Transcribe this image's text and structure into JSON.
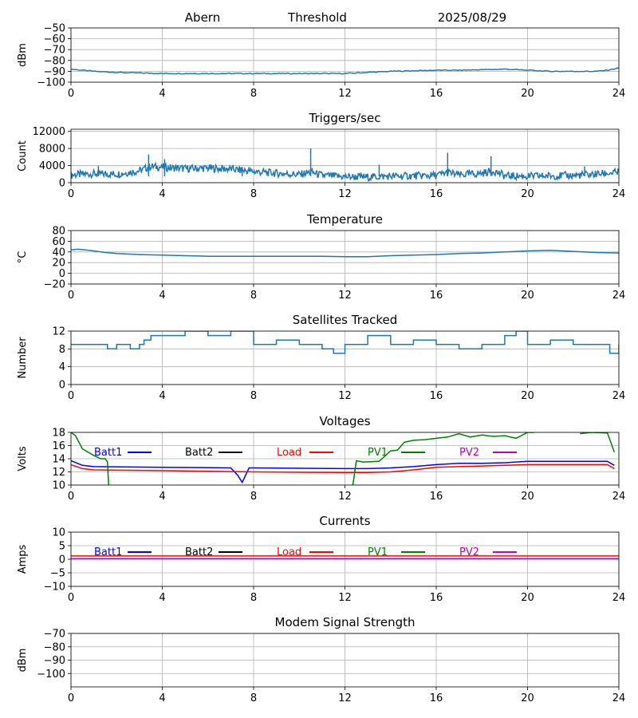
{
  "header": {
    "station": "Abern",
    "subtitle": "Threshold",
    "date": "2025/08/29"
  },
  "colors": {
    "data": "#1f77b4",
    "batt1": "#0000ff",
    "batt2": "#000000",
    "load": "#ff0000",
    "pv1": "#008000",
    "pv2": "#bf00bf"
  },
  "x_ticks": [
    "0",
    "4",
    "8",
    "12",
    "16",
    "20",
    "24"
  ],
  "chart_data": [
    {
      "type": "line",
      "title": "",
      "ylabel": "dBm",
      "xlim": [
        0,
        24
      ],
      "ylim": [
        -100,
        -50
      ],
      "yticks": [
        -100,
        -90,
        -80,
        -70,
        -60,
        -50
      ],
      "grid": true,
      "series": [
        {
          "color": "#1f77b4",
          "x": [
            0,
            0.5,
            1,
            2,
            3,
            4,
            6,
            8,
            10,
            12,
            13,
            14,
            15,
            16,
            17,
            18,
            19,
            20,
            21,
            22,
            23,
            23.5,
            24
          ],
          "y": [
            -88,
            -89,
            -90,
            -91,
            -91.5,
            -92,
            -92,
            -92,
            -92,
            -92,
            -91,
            -90,
            -89.5,
            -89,
            -89,
            -88.5,
            -88,
            -89,
            -90,
            -90,
            -90,
            -89,
            -87
          ]
        }
      ]
    },
    {
      "type": "line",
      "title": "Triggers/sec",
      "ylabel": "Count",
      "xlim": [
        0,
        24
      ],
      "ylim": [
        0,
        12500
      ],
      "yticks": [
        0,
        4000,
        8000,
        12000
      ],
      "grid": true,
      "series": [
        {
          "color": "#1f77b4",
          "x": [
            0,
            1,
            2,
            3,
            3.5,
            4,
            5,
            6,
            7,
            8,
            9,
            10,
            10.5,
            11,
            12,
            13,
            14,
            15,
            16,
            16.5,
            17,
            18,
            18.5,
            19,
            20,
            21,
            22,
            23,
            24
          ],
          "y": [
            1800,
            2100,
            2000,
            2800,
            3800,
            3600,
            3300,
            3400,
            3200,
            2600,
            2200,
            1900,
            2500,
            1700,
            1400,
            1300,
            1500,
            1600,
            1700,
            2400,
            1800,
            2200,
            2800,
            1600,
            1500,
            1600,
            1700,
            2000,
            2400
          ],
          "peaks": [
            [
              3.4,
              6600
            ],
            [
              4.1,
              5500
            ],
            [
              10.5,
              8000
            ],
            [
              16.5,
              7000
            ],
            [
              18.4,
              6200
            ],
            [
              13.5,
              4200
            ],
            [
              7.5,
              3700
            ],
            [
              1.2,
              3900
            ],
            [
              22.5,
              3800
            ]
          ]
        }
      ]
    },
    {
      "type": "line",
      "title": "Temperature",
      "ylabel": "°C",
      "xlim": [
        0,
        24
      ],
      "ylim": [
        -20,
        80
      ],
      "yticks": [
        -20,
        0,
        20,
        40,
        60,
        80
      ],
      "grid": true,
      "series": [
        {
          "color": "#1f77b4",
          "x": [
            0,
            0.3,
            0.6,
            1,
            1.5,
            2,
            3,
            4,
            5,
            6,
            8,
            10,
            11,
            12,
            13,
            14,
            15,
            16,
            17,
            18,
            19,
            20,
            21,
            22,
            23,
            24
          ],
          "y": [
            44,
            45,
            44,
            42,
            39,
            37,
            35,
            34,
            33,
            32,
            32,
            32,
            32,
            31,
            31,
            33,
            34,
            35,
            37,
            38,
            40,
            42,
            43,
            41,
            39,
            38
          ]
        }
      ]
    },
    {
      "type": "line",
      "title": "Satellites Tracked",
      "ylabel": "Number",
      "xlim": [
        0,
        24
      ],
      "ylim": [
        0,
        12
      ],
      "yticks": [
        0,
        4,
        8,
        12
      ],
      "grid": true,
      "series": [
        {
          "color": "#1f77b4",
          "step": true,
          "x": [
            0,
            1,
            1.6,
            2,
            2.6,
            3,
            3.2,
            3.5,
            4,
            5,
            6,
            7,
            8,
            9,
            10,
            11,
            11.5,
            12,
            13,
            14,
            15,
            16,
            17,
            18,
            19,
            19.5,
            20,
            21,
            22,
            23,
            23.6,
            24
          ],
          "y": [
            9,
            9,
            8,
            9,
            8,
            9,
            10,
            11,
            11,
            12,
            11,
            12,
            9,
            10,
            9,
            8,
            7,
            9,
            11,
            9,
            10,
            9,
            8,
            9,
            11,
            12,
            9,
            10,
            9,
            9,
            7,
            9
          ]
        }
      ]
    },
    {
      "type": "line",
      "title": "Voltages",
      "ylabel": "Volts",
      "xlim": [
        0,
        24
      ],
      "ylim": [
        10,
        18
      ],
      "yticks": [
        10,
        12,
        14,
        16,
        18
      ],
      "grid": true,
      "legend": [
        "Batt1",
        "Batt2",
        "Load",
        "PV1",
        "PV2"
      ],
      "series": [
        {
          "name": "Batt1",
          "color": "#0000ff",
          "x": [
            0,
            0.5,
            1,
            4,
            7,
            7.3,
            7.5,
            7.8,
            8,
            12,
            13,
            14,
            15,
            16,
            17,
            18,
            19,
            20,
            21,
            22,
            23,
            23.5,
            23.8
          ],
          "y": [
            13.7,
            13,
            12.8,
            12.7,
            12.6,
            11.5,
            10.4,
            12.6,
            12.6,
            12.5,
            12.5,
            12.6,
            12.8,
            13.1,
            13.3,
            13.3,
            13.4,
            13.6,
            13.6,
            13.6,
            13.6,
            13.6,
            13.0
          ]
        },
        {
          "name": "Load",
          "color": "#ff0000",
          "x": [
            0,
            0.5,
            1,
            4,
            8,
            12,
            13,
            14,
            15,
            16,
            17,
            18,
            19,
            20,
            21,
            22,
            23,
            23.5,
            23.8
          ],
          "y": [
            13.1,
            12.5,
            12.3,
            12.2,
            12.0,
            11.9,
            11.9,
            12.0,
            12.3,
            12.7,
            12.8,
            12.9,
            13.0,
            13.1,
            13.1,
            13.1,
            13.1,
            13.1,
            12.5
          ]
        },
        {
          "name": "PV1",
          "color": "#008000",
          "x": [
            0,
            0.2,
            0.5,
            1,
            1.3,
            1.5,
            1.6,
            1.65
          ],
          "y": [
            18,
            17.5,
            15.5,
            14.5,
            14,
            14,
            13.5,
            10
          ]
        },
        {
          "name": "PV1",
          "color": "#008000",
          "x": [
            12.35,
            12.5,
            12.8,
            13.5,
            14,
            14.3,
            14.6,
            15,
            15.5,
            16,
            16.5,
            17,
            17.5,
            18,
            18.5,
            19,
            19.5,
            20,
            20.3
          ],
          "y": [
            10,
            13.7,
            13.5,
            13.6,
            15.2,
            15.3,
            16.5,
            16.8,
            16.9,
            17.1,
            17.3,
            17.8,
            17.3,
            17.6,
            17.4,
            17.5,
            17.1,
            18,
            18
          ]
        },
        {
          "name": "PV1",
          "color": "#008000",
          "x": [
            22.3,
            22.8,
            23.5,
            23.8
          ],
          "y": [
            17.8,
            18,
            17.9,
            15
          ]
        }
      ]
    },
    {
      "type": "line",
      "title": "Currents",
      "ylabel": "Amps",
      "xlim": [
        0,
        24
      ],
      "ylim": [
        -10,
        10
      ],
      "yticks": [
        -10,
        -5,
        0,
        5,
        10
      ],
      "grid": true,
      "legend": [
        "Batt1",
        "Batt2",
        "Load",
        "PV1",
        "PV2"
      ],
      "series": [
        {
          "name": "Load",
          "color": "#ff0000",
          "x": [
            0,
            24
          ],
          "y": [
            1.2,
            1.2
          ]
        },
        {
          "name": "PV2",
          "color": "#bf00bf",
          "x": [
            0,
            24
          ],
          "y": [
            0.2,
            0.2
          ]
        }
      ]
    },
    {
      "type": "line",
      "title": "Modem Signal Strength",
      "ylabel": "dBm",
      "xlim": [
        0,
        24
      ],
      "ylim": [
        -110,
        -70
      ],
      "yticks": [
        -100,
        -90,
        -80,
        -70
      ],
      "grid": true,
      "series": []
    }
  ]
}
